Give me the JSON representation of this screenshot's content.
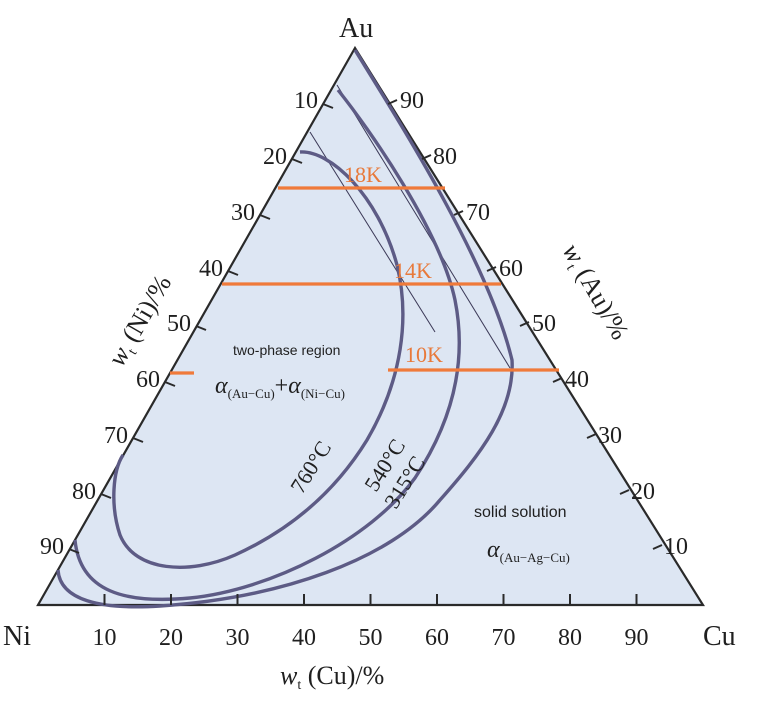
{
  "vertices": {
    "top": "Au",
    "left": "Ni",
    "right": "Cu"
  },
  "axes": {
    "cu_title": "w",
    "cu_title_sub": "t",
    "cu_title_rest": " (Cu)/%",
    "ni_title": "w",
    "ni_title_sub": "t",
    "ni_title_rest": " (Ni)/%",
    "au_title": "w",
    "au_title_sub": "t",
    "au_title_rest": " (Au)/%",
    "cu_ticks": [
      "10",
      "20",
      "30",
      "40",
      "50",
      "60",
      "70",
      "80",
      "90"
    ],
    "ni_ticks": [
      "10",
      "20",
      "30",
      "40",
      "50",
      "60",
      "70",
      "80",
      "90"
    ],
    "au_ticks": [
      "90",
      "80",
      "70",
      "60",
      "50",
      "40",
      "30",
      "20",
      "10"
    ]
  },
  "regions": {
    "two_phase": "two-phase region",
    "two_phase_formula_a": "α",
    "two_phase_formula_a_sub": "(Au−Cu)",
    "two_phase_formula_plus": "+",
    "two_phase_formula_b": "α",
    "two_phase_formula_b_sub": "(Ni−Cu)",
    "solid_solution": "solid solution",
    "solid_formula": "α",
    "solid_formula_sub": "(Au−Ag−Cu)"
  },
  "karat_lines": [
    {
      "label": "18K",
      "au_percent": 75
    },
    {
      "label": "14K",
      "au_percent": 58.5
    },
    {
      "label": "10K",
      "au_percent": 41.7
    }
  ],
  "isotherms": [
    {
      "label": "760°C"
    },
    {
      "label": "540°C"
    },
    {
      "label": "315°C"
    }
  ],
  "colors": {
    "background": "#ffffff",
    "triangle_fill": "#dde6f3",
    "triangle_edge": "#2a2a2a",
    "curve": "#5d5b85",
    "karat_line": "#f07a3a",
    "karat_text": "#e8793a"
  }
}
